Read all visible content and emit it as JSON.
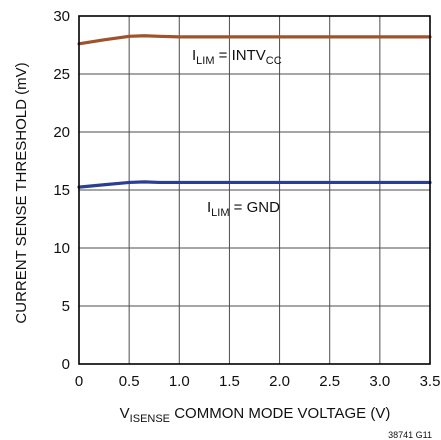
{
  "chart_data": {
    "type": "line",
    "title": "",
    "xlabel": {
      "main": "V",
      "sub": "ISENSE",
      "rest": " COMMON MODE VOLTAGE (V)"
    },
    "ylabel": "CURRENT SENSE THRESHOLD (mV)",
    "xlim": [
      0,
      3.5
    ],
    "ylim": [
      0,
      30
    ],
    "x_ticks": [
      "0",
      "0.5",
      "1.0",
      "1.5",
      "2.0",
      "2.5",
      "3.0",
      "3.5"
    ],
    "y_ticks": [
      "0",
      "5",
      "10",
      "15",
      "20",
      "25",
      "30"
    ],
    "grid": true,
    "series": [
      {
        "label": {
          "main": "I",
          "sub1": "LIM",
          "mid": " = INTV",
          "sub2": "CC"
        },
        "color": "#a0522d",
        "x": [
          0,
          0.25,
          0.5,
          0.65,
          0.8,
          1.0,
          1.5,
          2.0,
          2.5,
          3.0,
          3.5
        ],
        "y": [
          27.6,
          27.95,
          28.25,
          28.3,
          28.25,
          28.2,
          28.2,
          28.2,
          28.2,
          28.2,
          28.2
        ]
      },
      {
        "label": {
          "main": "I",
          "sub1": "LIM",
          "mid": " = GND",
          "sub2": ""
        },
        "color": "#2a3f8f",
        "x": [
          0,
          0.25,
          0.5,
          0.65,
          0.8,
          1.0,
          1.5,
          2.0,
          2.5,
          3.0,
          3.5
        ],
        "y": [
          15.25,
          15.45,
          15.65,
          15.7,
          15.65,
          15.65,
          15.65,
          15.65,
          15.65,
          15.65,
          15.65
        ]
      }
    ]
  },
  "figure_id": "38741 G11"
}
